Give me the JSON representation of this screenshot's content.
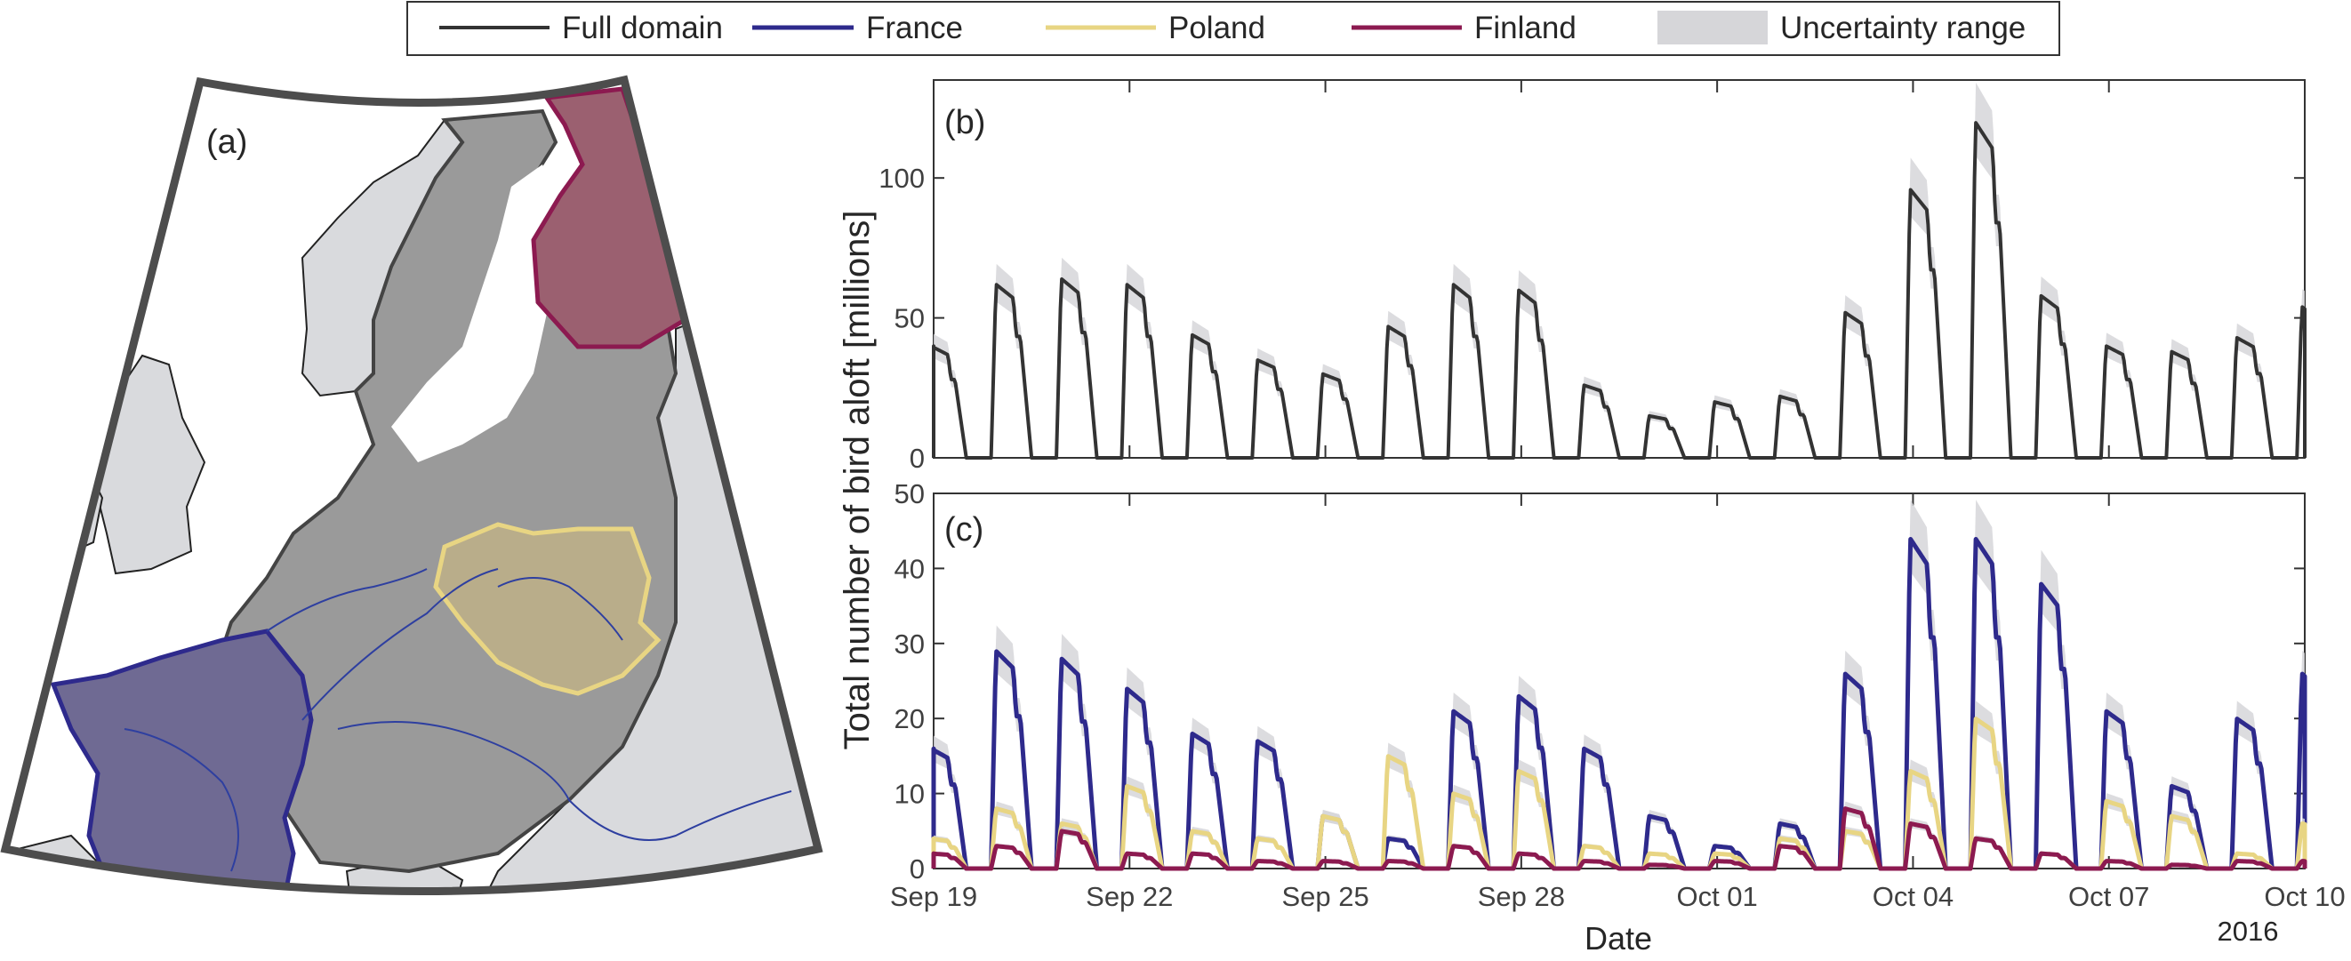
{
  "legend": [
    {
      "label": "Full domain",
      "color": "#333333",
      "kind": "line"
    },
    {
      "label": "France",
      "color": "#2e2a8c",
      "kind": "line"
    },
    {
      "label": "Poland",
      "color": "#e8d583",
      "kind": "line"
    },
    {
      "label": "Finland",
      "color": "#8c1a50",
      "kind": "line"
    },
    {
      "label": "Uncertainty range",
      "color": "#d6d6d9",
      "kind": "patch"
    }
  ],
  "panel_a": {
    "label": "(a)",
    "colors": {
      "domain": "#9a9a9a",
      "france": "#6f6a93",
      "france_edge": "#2e2a8c",
      "poland": "#b9ad8a",
      "poland_edge": "#e8d583",
      "finland": "#9b6070",
      "finland_edge": "#8c1a50",
      "other_land": "#d9dadd",
      "sea": "#ffffff",
      "river": "#2e3fa0"
    }
  },
  "panel_b": {
    "label": "(b)"
  },
  "panel_c": {
    "label": "(c)"
  },
  "ylabel": "Total number of bird aloft  [millions]",
  "xlabel": "Date",
  "year_label": "2016",
  "chart_data": [
    {
      "type": "line",
      "panel": "b",
      "x_tick_labels": [
        "Sep 19",
        "Sep 22",
        "Sep 25",
        "Sep 28",
        "Oct 01",
        "Oct 04",
        "Oct 07",
        "Oct 10"
      ],
      "x_start": "2016-09-19",
      "x_end": "2016-10-10",
      "ylim": [
        0,
        135
      ],
      "yticks": [
        0,
        50,
        100
      ],
      "nightly_peaks_dates": [
        "2016-09-19",
        "2016-09-20",
        "2016-09-21",
        "2016-09-22",
        "2016-09-23",
        "2016-09-24",
        "2016-09-25",
        "2016-09-26",
        "2016-09-27",
        "2016-09-28",
        "2016-09-29",
        "2016-09-30",
        "2016-10-01",
        "2016-10-02",
        "2016-10-03",
        "2016-10-04",
        "2016-10-05",
        "2016-10-06",
        "2016-10-07",
        "2016-10-08",
        "2016-10-09",
        "2016-10-10"
      ],
      "series": [
        {
          "name": "Full domain",
          "peaks": [
            40,
            62,
            64,
            62,
            44,
            35,
            30,
            47,
            62,
            60,
            26,
            15,
            20,
            22,
            52,
            96,
            120,
            58,
            40,
            38,
            43,
            54
          ]
        }
      ]
    },
    {
      "type": "line",
      "panel": "c",
      "x_tick_labels": [
        "Sep 19",
        "Sep 22",
        "Sep 25",
        "Sep 28",
        "Oct 01",
        "Oct 04",
        "Oct 07",
        "Oct 10"
      ],
      "x_start": "2016-09-19",
      "x_end": "2016-10-10",
      "ylim": [
        0,
        50
      ],
      "yticks": [
        0,
        10,
        20,
        30,
        40,
        50
      ],
      "nightly_peaks_dates": [
        "2016-09-19",
        "2016-09-20",
        "2016-09-21",
        "2016-09-22",
        "2016-09-23",
        "2016-09-24",
        "2016-09-25",
        "2016-09-26",
        "2016-09-27",
        "2016-09-28",
        "2016-09-29",
        "2016-09-30",
        "2016-10-01",
        "2016-10-02",
        "2016-10-03",
        "2016-10-04",
        "2016-10-05",
        "2016-10-06",
        "2016-10-07",
        "2016-10-08",
        "2016-10-09",
        "2016-10-10"
      ],
      "series": [
        {
          "name": "France",
          "peaks": [
            16,
            29,
            28,
            24,
            18,
            17,
            7,
            4,
            21,
            23,
            16,
            7,
            3,
            6,
            26,
            44,
            44,
            38,
            21,
            11,
            20,
            26
          ]
        },
        {
          "name": "Poland",
          "peaks": [
            4,
            8,
            6,
            11,
            5,
            4,
            7,
            15,
            10,
            13,
            3,
            2,
            2,
            4,
            5,
            13,
            20,
            2,
            9,
            7,
            2,
            6
          ]
        },
        {
          "name": "Finland",
          "peaks": [
            2,
            3,
            5,
            2,
            2,
            1,
            1,
            1,
            3,
            2,
            1,
            0.5,
            1,
            3,
            8,
            6,
            4,
            2,
            1,
            0.5,
            1,
            1
          ]
        }
      ]
    }
  ]
}
